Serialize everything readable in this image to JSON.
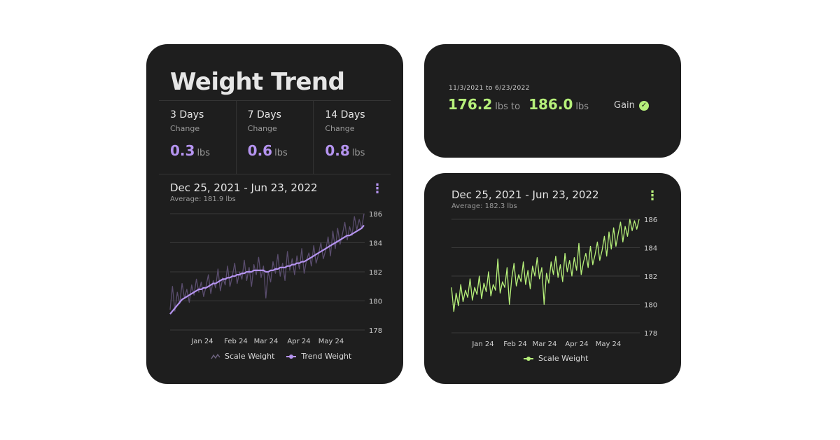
{
  "colors": {
    "background": "#ffffff",
    "card": "#1e1e1e",
    "accent_purple": "#b594f0",
    "accent_green": "#b6f07a",
    "scale_line_dim": "#5a4d6e",
    "grid": "#3a3a3a"
  },
  "weight_trend_card": {
    "title": "Weight Trend",
    "stats": [
      {
        "days": "3 Days",
        "label": "Change",
        "value": "0.3",
        "unit": "lbs"
      },
      {
        "days": "7 Days",
        "label": "Change",
        "value": "0.6",
        "unit": "lbs"
      },
      {
        "days": "14 Days",
        "label": "Change",
        "value": "0.8",
        "unit": "lbs"
      }
    ],
    "range": "Dec 25, 2021 - Jun 23, 2022",
    "average": "Average: 181.9 lbs",
    "menu_icon": "kebab-menu-icon",
    "legend": {
      "scale": "Scale Weight",
      "trend": "Trend Weight"
    }
  },
  "summary_card": {
    "date_range": "11/3/2021 to 6/23/2022",
    "from_value": "176.2",
    "from_unit": "lbs to",
    "to_value": "186.0",
    "to_unit": "lbs",
    "status": "Gain",
    "status_icon": "check-circle-icon"
  },
  "scale_card": {
    "range": "Dec 25, 2021 - Jun 23, 2022",
    "average": "Average: 182.3 lbs",
    "menu_icon": "kebab-menu-icon",
    "legend": {
      "scale": "Scale Weight"
    }
  },
  "chart_data": [
    {
      "type": "line",
      "title": "Dec 25, 2021 - Jun 23, 2022",
      "subtitle": "Average: 181.9 lbs",
      "xlabel": "",
      "ylabel": "",
      "x_ticks": [
        "Jan 24",
        "Feb 24",
        "Mar 24",
        "Apr 24",
        "May 24"
      ],
      "y_ticks": [
        178,
        180,
        182,
        184,
        186
      ],
      "ylim": [
        178,
        186
      ],
      "grid": true,
      "y_axis_side": "right",
      "legend_position": "bottom-center",
      "series": [
        {
          "name": "Scale Weight",
          "color": "#5a4d6e",
          "values": [
            179.4,
            181.0,
            179.3,
            180.6,
            179.8,
            181.2,
            180.2,
            180.8,
            179.9,
            181.1,
            180.4,
            181.5,
            180.6,
            181.3,
            180.3,
            181.0,
            181.8,
            180.5,
            181.4,
            180.9,
            182.2,
            180.7,
            181.6,
            181.1,
            182.4,
            181.0,
            181.7,
            182.6,
            181.2,
            182.0,
            181.5,
            182.8,
            181.4,
            182.3,
            181.0,
            182.5,
            181.8,
            183.0,
            181.6,
            182.4,
            180.2,
            182.0,
            181.3,
            182.7,
            181.9,
            183.2,
            181.7,
            182.6,
            181.4,
            183.4,
            182.1,
            182.9,
            181.8,
            183.1,
            182.2,
            183.6,
            181.9,
            182.8,
            183.3,
            182.4,
            183.8,
            182.6,
            183.2,
            184.0,
            182.9,
            183.5,
            184.4,
            183.1,
            184.8,
            183.6,
            185.0,
            183.9,
            184.6,
            185.4,
            184.2,
            185.1,
            184.5,
            185.8,
            184.9,
            185.6,
            185.0,
            186.0
          ]
        },
        {
          "name": "Trend Weight",
          "color": "#b594f0",
          "values": [
            179.1,
            179.3,
            179.5,
            179.7,
            179.9,
            180.1,
            180.2,
            180.3,
            180.4,
            180.5,
            180.6,
            180.7,
            180.8,
            180.8,
            180.9,
            180.9,
            181.0,
            181.1,
            181.2,
            181.2,
            181.3,
            181.4,
            181.5,
            181.5,
            181.6,
            181.6,
            181.7,
            181.7,
            181.8,
            181.8,
            181.9,
            181.9,
            182.0,
            182.0,
            182.0,
            182.1,
            182.1,
            182.1,
            182.1,
            182.1,
            182.0,
            182.0,
            182.1,
            182.1,
            182.2,
            182.2,
            182.3,
            182.3,
            182.3,
            182.4,
            182.4,
            182.5,
            182.5,
            182.6,
            182.6,
            182.7,
            182.7,
            182.8,
            182.9,
            183.0,
            183.1,
            183.2,
            183.3,
            183.4,
            183.5,
            183.6,
            183.7,
            183.8,
            183.9,
            184.0,
            184.1,
            184.2,
            184.3,
            184.4,
            184.5,
            184.5,
            184.6,
            184.7,
            184.8,
            184.9,
            185.0,
            185.2
          ]
        }
      ]
    },
    {
      "type": "line",
      "title": "Dec 25, 2021 - Jun 23, 2022",
      "subtitle": "Average: 182.3 lbs",
      "xlabel": "",
      "ylabel": "",
      "x_ticks": [
        "Jan 24",
        "Feb 24",
        "Mar 24",
        "Apr 24",
        "May 24"
      ],
      "y_ticks": [
        178,
        180,
        182,
        184,
        186
      ],
      "ylim": [
        178,
        186
      ],
      "grid": true,
      "y_axis_side": "right",
      "legend_position": "bottom-center",
      "series": [
        {
          "name": "Scale Weight",
          "color": "#b6f07a",
          "values": [
            181.2,
            179.5,
            180.8,
            179.9,
            181.4,
            180.2,
            181.0,
            180.5,
            181.8,
            180.3,
            181.2,
            180.7,
            182.0,
            180.4,
            181.5,
            180.9,
            182.3,
            180.6,
            181.4,
            181.0,
            183.2,
            180.8,
            181.6,
            181.2,
            182.6,
            180.0,
            181.8,
            182.9,
            181.3,
            182.1,
            181.6,
            183.0,
            181.4,
            182.4,
            181.1,
            182.7,
            182.0,
            183.3,
            181.8,
            182.6,
            180.0,
            182.2,
            181.5,
            183.0,
            182.1,
            183.4,
            181.9,
            182.8,
            181.6,
            183.6,
            182.3,
            183.1,
            182.0,
            183.3,
            182.4,
            184.3,
            182.1,
            183.0,
            183.6,
            182.6,
            184.1,
            182.8,
            183.5,
            184.4,
            183.1,
            183.8,
            184.8,
            183.4,
            185.1,
            183.9,
            185.4,
            184.1,
            185.0,
            185.8,
            184.4,
            185.5,
            184.8,
            186.0,
            185.2,
            185.9,
            185.3,
            186.0
          ]
        }
      ]
    }
  ]
}
